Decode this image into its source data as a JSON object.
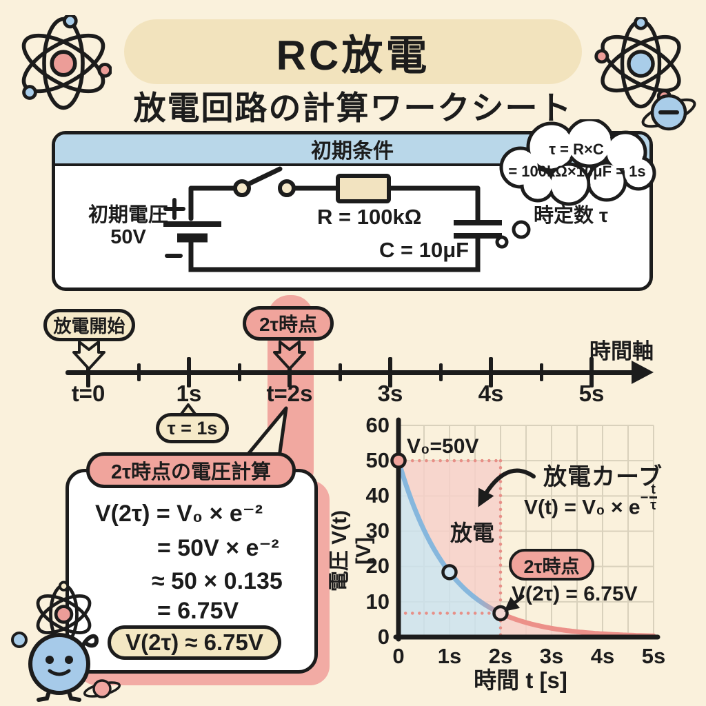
{
  "colors": {
    "background": "#faf1dc",
    "outline": "#1c1c1c",
    "tan": "#f2e3bd",
    "tan_light": "#f5e9c8",
    "blue_header": "#b9d7e9",
    "salmon": "#f0a49c",
    "salmon_band": "#f1a8a0",
    "shade_blue": "#c9e2f0",
    "shade_pink": "#f6cfc9",
    "curve_blue": "#86b7dd",
    "curve_red": "#ec9089",
    "dotted_pink": "#e78f87",
    "grid": "#d9d1bc",
    "electron_blue": "#a9cde9",
    "nucleus_pink": "#ec9d98"
  },
  "header": {
    "title": "RC放電",
    "subtitle": "放電回路の計算ワークシート"
  },
  "circuit": {
    "panel_title": "初期条件",
    "source_label_1": "初期電圧",
    "source_label_2": "50V",
    "plus": "+",
    "minus": "−",
    "resistor_label": "R = 100kΩ",
    "capacitor_label": "C = 10μF",
    "bubble_line_1": "τ = R×C",
    "bubble_line_2": "= 100kΩ×10μF = 1s",
    "time_constant_label": "時定数 τ"
  },
  "timeline": {
    "start_badge": "放電開始",
    "two_tau_badge": "2τ時点",
    "axis_label": "時間軸",
    "ticks": [
      "t=0",
      "1s",
      "t=2s",
      "3s",
      "4s",
      "5s"
    ],
    "tau_badge": "τ = 1s"
  },
  "calc": {
    "title": "2τ時点の電圧計算",
    "line_1": "V(2τ) = V₀ × e⁻²",
    "line_2": "= 50V × e⁻²",
    "line_3": "≈ 50 × 0.135",
    "line_4": "= 6.75V",
    "result": "V(2τ) ≈ 6.75V"
  },
  "graph": {
    "v0_label": "V₀=50V",
    "discharge_label": "放電",
    "curve_label": "放電カーブ",
    "formula_prefix": "V(t) = V₀ × e",
    "formula_exp_sign": "−",
    "formula_exp_num": "t",
    "formula_exp_den": "τ",
    "two_tau_badge": "2τ時点",
    "point_label": "V(2τ) = 6.75V",
    "xlabel": "時間 t [s]",
    "ylabel": "電圧 V(t) [V]",
    "x_ticks": [
      "0",
      "1s",
      "2s",
      "3s",
      "4s",
      "5s"
    ],
    "y_ticks": [
      "60",
      "50",
      "40",
      "30",
      "20",
      "10",
      "0"
    ]
  },
  "chart_data": {
    "type": "line",
    "title": "放電カーブ",
    "xlabel": "時間 t [s]",
    "ylabel": "電圧 V(t) [V]",
    "xlim": [
      0,
      5
    ],
    "ylim": [
      0,
      60
    ],
    "x_tick_labels": [
      "0",
      "1s",
      "2s",
      "3s",
      "4s",
      "5s"
    ],
    "y_tick_values": [
      0,
      10,
      20,
      30,
      40,
      50,
      60
    ],
    "grid": true,
    "legend_position": "none",
    "series": [
      {
        "name": "放電カーブ V(t) = V₀ × e^(−t/τ)",
        "v0": 50,
        "tau": 1,
        "x": [
          0,
          0.5,
          1,
          1.5,
          2,
          2.5,
          3,
          3.5,
          4,
          4.5,
          5
        ],
        "y": [
          50,
          30.3,
          18.4,
          11.2,
          6.75,
          4.1,
          2.5,
          1.5,
          0.9,
          0.55,
          0.34
        ]
      }
    ],
    "points": [
      {
        "t": 0,
        "v": 50,
        "label": "V₀=50V",
        "fill": "salmon"
      },
      {
        "t": 1,
        "v": 18.4,
        "label": "",
        "fill": "blue"
      },
      {
        "t": 2,
        "v": 6.75,
        "label": "V(2τ) = 6.75V",
        "fill": "pink_light"
      }
    ],
    "guides": [
      {
        "type": "h",
        "v": 50,
        "t0": 0,
        "t1": 2
      },
      {
        "type": "v",
        "t": 2,
        "v_top": 50
      },
      {
        "type": "h",
        "v": 6.75,
        "t0": 0,
        "t1": 2
      }
    ],
    "regions": [
      {
        "name": "under-curve-before-2tau",
        "t0": 0,
        "t1": 2,
        "color_key": "shade_blue"
      },
      {
        "name": "above-curve-before-2tau",
        "t0": 0,
        "t1": 2,
        "vtop": 50,
        "color_key": "shade_pink"
      },
      {
        "name": "under-curve-after-2tau",
        "t0": 2,
        "t1": 5,
        "color_key": "shade_pink"
      }
    ]
  }
}
